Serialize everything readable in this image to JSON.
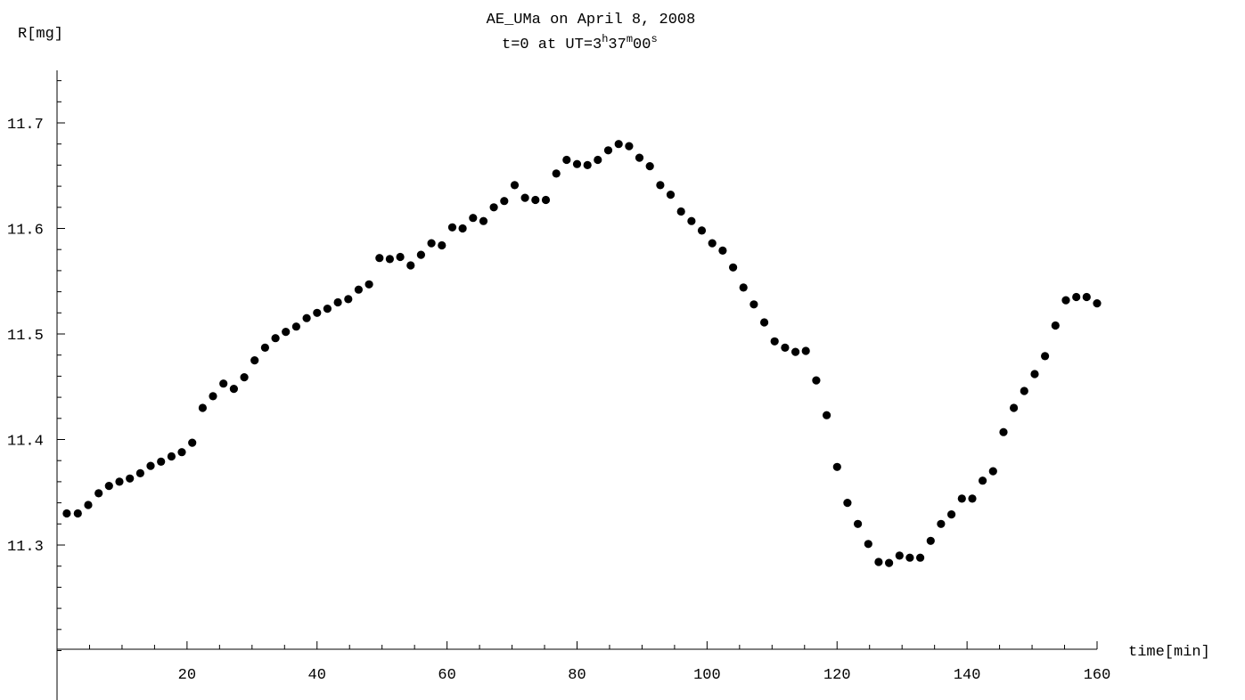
{
  "chart_data": {
    "type": "scatter",
    "title": "AE_UMa on April 8, 2008",
    "subtitle": {
      "prefix": "t=0 at UT=3",
      "h_sup": "h",
      "mid1": "37",
      "m_sup": "m",
      "mid2": "00",
      "s_sup": "s"
    },
    "xlabel": "time[min]",
    "ylabel": "R[mg]",
    "xlim": [
      0,
      160
    ],
    "ylim": [
      11.2,
      11.75
    ],
    "xticks_major": [
      20,
      40,
      60,
      80,
      100,
      120,
      140,
      160
    ],
    "xtick_labels": [
      "20",
      "40",
      "60",
      "80",
      "100",
      "120",
      "140",
      "160"
    ],
    "yticks_major": [
      11.3,
      11.4,
      11.5,
      11.6,
      11.7
    ],
    "ytick_labels": [
      "11.3",
      "11.4",
      "11.5",
      "11.6",
      "11.7"
    ],
    "marker_color": "#000000",
    "grid": false,
    "series": [
      {
        "points": [
          [
            1.5,
            11.33
          ],
          [
            3.2,
            11.33
          ],
          [
            4.8,
            11.338
          ],
          [
            6.4,
            11.349
          ],
          [
            8.0,
            11.356
          ],
          [
            9.6,
            11.36
          ],
          [
            11.2,
            11.363
          ],
          [
            12.8,
            11.368
          ],
          [
            14.4,
            11.375
          ],
          [
            16.0,
            11.379
          ],
          [
            17.6,
            11.384
          ],
          [
            19.2,
            11.388
          ],
          [
            20.8,
            11.397
          ],
          [
            22.4,
            11.43
          ],
          [
            24.0,
            11.441
          ],
          [
            25.6,
            11.453
          ],
          [
            27.2,
            11.448
          ],
          [
            28.8,
            11.459
          ],
          [
            30.4,
            11.475
          ],
          [
            32.0,
            11.487
          ],
          [
            33.6,
            11.496
          ],
          [
            35.2,
            11.502
          ],
          [
            36.8,
            11.507
          ],
          [
            38.4,
            11.515
          ],
          [
            40.0,
            11.52
          ],
          [
            41.6,
            11.524
          ],
          [
            43.2,
            11.53
          ],
          [
            44.8,
            11.533
          ],
          [
            46.4,
            11.542
          ],
          [
            48.0,
            11.547
          ],
          [
            49.6,
            11.572
          ],
          [
            51.2,
            11.571
          ],
          [
            52.8,
            11.573
          ],
          [
            54.4,
            11.565
          ],
          [
            56.0,
            11.575
          ],
          [
            57.6,
            11.586
          ],
          [
            59.2,
            11.584
          ],
          [
            60.8,
            11.601
          ],
          [
            62.4,
            11.6
          ],
          [
            64.0,
            11.61
          ],
          [
            65.6,
            11.607
          ],
          [
            67.2,
            11.62
          ],
          [
            68.8,
            11.626
          ],
          [
            70.4,
            11.641
          ],
          [
            72.0,
            11.629
          ],
          [
            73.6,
            11.627
          ],
          [
            75.2,
            11.627
          ],
          [
            76.8,
            11.652
          ],
          [
            78.4,
            11.665
          ],
          [
            80.0,
            11.661
          ],
          [
            81.6,
            11.66
          ],
          [
            83.2,
            11.665
          ],
          [
            84.8,
            11.674
          ],
          [
            86.4,
            11.68
          ],
          [
            88.0,
            11.678
          ],
          [
            89.6,
            11.667
          ],
          [
            91.2,
            11.659
          ],
          [
            92.8,
            11.641
          ],
          [
            94.4,
            11.632
          ],
          [
            96.0,
            11.616
          ],
          [
            97.6,
            11.607
          ],
          [
            99.2,
            11.598
          ],
          [
            100.8,
            11.586
          ],
          [
            102.4,
            11.579
          ],
          [
            104.0,
            11.563
          ],
          [
            105.6,
            11.544
          ],
          [
            107.2,
            11.528
          ],
          [
            108.8,
            11.511
          ],
          [
            110.4,
            11.493
          ],
          [
            112.0,
            11.487
          ],
          [
            113.6,
            11.483
          ],
          [
            115.2,
            11.484
          ],
          [
            116.8,
            11.456
          ],
          [
            118.4,
            11.423
          ],
          [
            120.0,
            11.374
          ],
          [
            121.6,
            11.34
          ],
          [
            123.2,
            11.32
          ],
          [
            124.8,
            11.301
          ],
          [
            126.4,
            11.284
          ],
          [
            128.0,
            11.283
          ],
          [
            129.6,
            11.29
          ],
          [
            131.2,
            11.288
          ],
          [
            132.8,
            11.288
          ],
          [
            134.4,
            11.304
          ],
          [
            136.0,
            11.32
          ],
          [
            137.6,
            11.329
          ],
          [
            139.2,
            11.344
          ],
          [
            140.8,
            11.344
          ],
          [
            142.4,
            11.361
          ],
          [
            144.0,
            11.37
          ],
          [
            145.6,
            11.407
          ],
          [
            147.2,
            11.43
          ],
          [
            148.8,
            11.446
          ],
          [
            150.4,
            11.462
          ],
          [
            152.0,
            11.479
          ],
          [
            153.6,
            11.508
          ],
          [
            155.2,
            11.532
          ],
          [
            156.8,
            11.535
          ],
          [
            158.4,
            11.535
          ],
          [
            160.0,
            11.529
          ]
        ]
      }
    ]
  }
}
